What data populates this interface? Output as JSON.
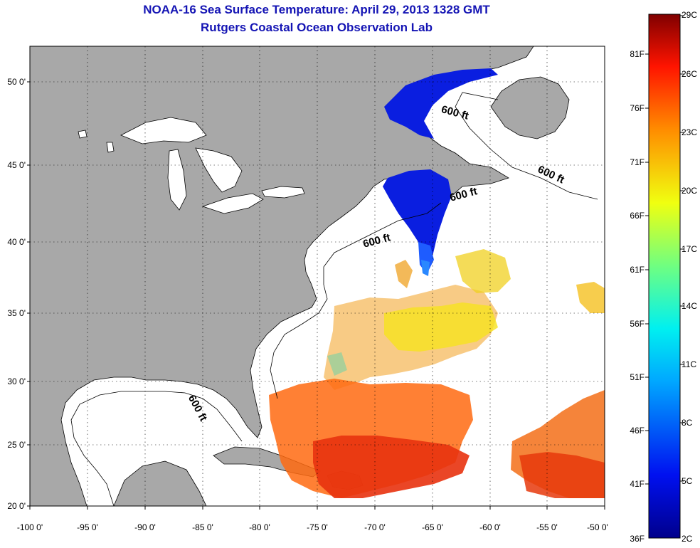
{
  "title": {
    "line1": "NOAA-16 Sea Surface Temperature:  April 29, 2013 1328 GMT",
    "line2": "Rutgers Coastal Ocean Observation Lab"
  },
  "axes": {
    "lat_labels": [
      "50 0'",
      "45 0'",
      "40 0'",
      "35 0'",
      "30 0'",
      "25 0'",
      "20 0'"
    ],
    "lon_labels": [
      "-100 0'",
      "-95 0'",
      "-90 0'",
      "-85 0'",
      "-80 0'",
      "-75 0'",
      "-70 0'",
      "-65 0'",
      "-60 0'",
      "-55 0'",
      "-50 0'"
    ]
  },
  "contour_labels": [
    "600 ft",
    "600 ft",
    "600 ft",
    "600 ft",
    "600 ft"
  ],
  "colorbar": {
    "fahrenheit": [
      "81F",
      "76F",
      "71F",
      "66F",
      "61F",
      "56F",
      "51F",
      "46F",
      "41F",
      "36F"
    ],
    "celsius": [
      "29C",
      "26C",
      "23C",
      "20C",
      "17C",
      "14C",
      "11C",
      "8C",
      "5C",
      "2C"
    ]
  },
  "colors": {
    "title": "#1414b4",
    "land": "#a8a8a8",
    "cold": "#0a1ee0",
    "warm": "#e83a10"
  }
}
